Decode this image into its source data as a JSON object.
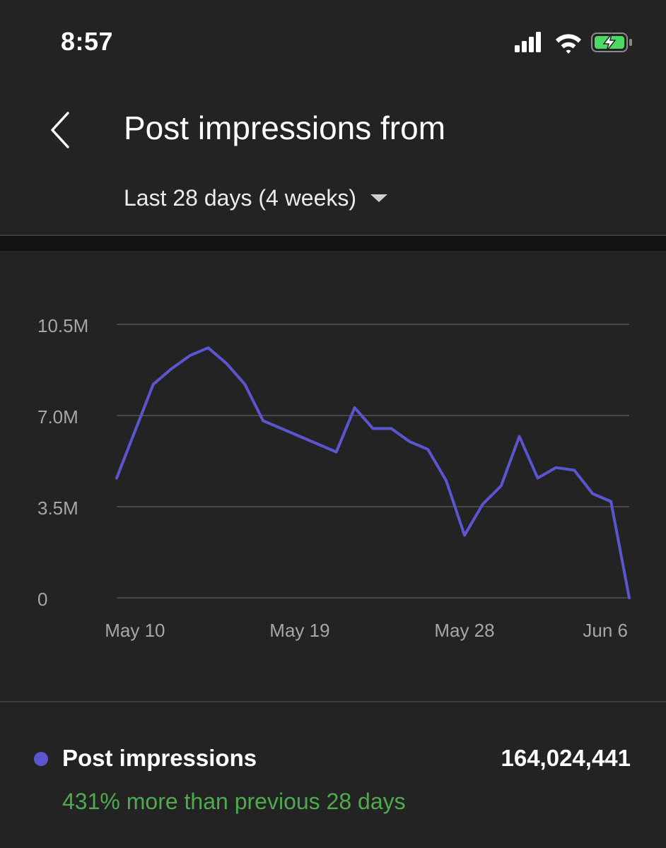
{
  "status_bar": {
    "time": "8:57",
    "icons": [
      "cellular-signal-icon",
      "wifi-icon",
      "battery-charging-icon"
    ]
  },
  "header": {
    "back_icon": "chevron-left-icon",
    "title": "Post impressions from",
    "period": "Last 28 days (4 weeks)",
    "period_icon": "caret-down-icon"
  },
  "colors": {
    "background": "#232323",
    "series": "#5b55cf",
    "positive": "#4faa4f"
  },
  "chart_data": {
    "type": "line",
    "x": [
      "May 9",
      "May 10",
      "May 11",
      "May 12",
      "May 13",
      "May 14",
      "May 15",
      "May 16",
      "May 17",
      "May 18",
      "May 19",
      "May 20",
      "May 21",
      "May 22",
      "May 23",
      "May 24",
      "May 25",
      "May 26",
      "May 27",
      "May 28",
      "May 29",
      "May 30",
      "May 31",
      "Jun 1",
      "Jun 2",
      "Jun 3",
      "Jun 4",
      "Jun 5",
      "Jun 6"
    ],
    "series": [
      {
        "values": [
          4.6,
          6.4,
          8.2,
          8.8,
          9.3,
          9.6,
          9.0,
          8.2,
          6.8,
          6.5,
          6.2,
          5.9,
          5.6,
          7.3,
          6.5,
          6.5,
          6.0,
          5.7,
          4.5,
          2.4,
          3.6,
          4.3,
          6.2,
          4.6,
          5.0,
          4.9,
          4.0,
          3.7,
          0.0
        ]
      }
    ],
    "xticks": [
      "May 10",
      "May 19",
      "May 28",
      "Jun 6"
    ],
    "yticks": [
      {
        "value": 0,
        "label": "0"
      },
      {
        "value": 3.5,
        "label": "3.5M"
      },
      {
        "value": 7.0,
        "label": "7.0M"
      },
      {
        "value": 10.5,
        "label": "10.5M"
      }
    ],
    "ylim": [
      0,
      10.5
    ],
    "grid": true
  },
  "summary": {
    "metric_label": "Post impressions",
    "metric_value": "164,024,441",
    "change_text": "431% more than previous 28 days"
  }
}
